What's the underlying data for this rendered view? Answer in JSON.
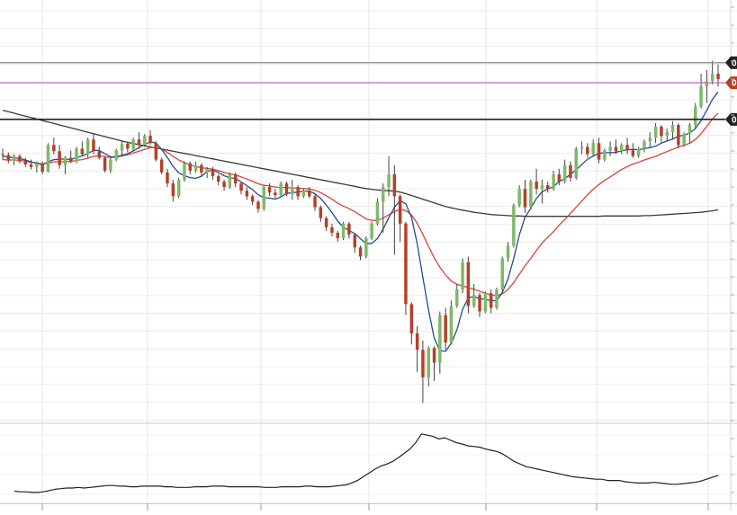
{
  "chart_data": [
    {
      "type": "candlestick",
      "panel": "price",
      "title": "",
      "xlabel": "",
      "ylabel": "",
      "ylim": [
        0,
        100
      ],
      "grid": true,
      "legend": "none",
      "colors": {
        "up": "#7fb86a",
        "down": "#b5402a",
        "wick": "#444444",
        "ma_fast": "#1f4e8c",
        "ma_mid": "#d9433a",
        "ma_long": "#3a3a3a",
        "line_purple": "#cc66cc",
        "line_gray": "#888888",
        "line_black": "#222222"
      },
      "horizontal_lines": [
        {
          "name": "level-top",
          "value": 89,
          "color": "#888888",
          "marker_text": "0",
          "marker_color": "#222222"
        },
        {
          "name": "level-purple",
          "value": 83.5,
          "color": "#cc66cc",
          "marker_text": "0",
          "marker_color": "#b5402a"
        },
        {
          "name": "level-black",
          "value": 73.5,
          "color": "#222222",
          "marker_text": "0",
          "marker_color": "#222222"
        }
      ],
      "candles": [
        [
          64.0,
          65.5,
          62.5,
          63.8
        ],
        [
          63.8,
          64.5,
          61.5,
          62.2
        ],
        [
          62.2,
          64.0,
          61.0,
          63.5
        ],
        [
          63.5,
          64.0,
          61.5,
          62.0
        ],
        [
          62.0,
          63.0,
          60.5,
          61.2
        ],
        [
          61.2,
          62.5,
          59.8,
          60.5
        ],
        [
          60.5,
          62.0,
          59.0,
          61.5
        ],
        [
          61.5,
          62.0,
          58.5,
          59.2
        ],
        [
          59.2,
          67.0,
          59.0,
          66.5
        ],
        [
          66.5,
          68.5,
          64.0,
          64.8
        ],
        [
          64.8,
          66.5,
          60.0,
          61.0
        ],
        [
          61.0,
          63.5,
          58.5,
          63.0
        ],
        [
          63.0,
          65.0,
          61.5,
          62.0
        ],
        [
          62.0,
          66.0,
          61.5,
          65.5
        ],
        [
          65.5,
          67.5,
          63.5,
          64.0
        ],
        [
          64.0,
          68.5,
          63.0,
          68.0
        ],
        [
          68.0,
          69.5,
          64.0,
          64.8
        ],
        [
          64.8,
          66.0,
          62.5,
          63.0
        ],
        [
          63.0,
          63.5,
          59.0,
          59.5
        ],
        [
          59.5,
          63.0,
          58.8,
          62.5
        ],
        [
          62.5,
          65.5,
          62.0,
          65.0
        ],
        [
          65.0,
          67.5,
          63.5,
          66.8
        ],
        [
          66.8,
          67.5,
          64.5,
          65.5
        ],
        [
          65.5,
          68.5,
          64.8,
          68.0
        ],
        [
          68.0,
          70.0,
          65.5,
          66.5
        ],
        [
          66.5,
          69.5,
          66.0,
          69.0
        ],
        [
          69.0,
          70.5,
          66.5,
          67.0
        ],
        [
          67.0,
          67.5,
          62.0,
          62.5
        ],
        [
          62.5,
          63.0,
          58.5,
          59.0
        ],
        [
          59.0,
          60.0,
          55.0,
          56.0
        ],
        [
          56.0,
          57.0,
          51.0,
          52.5
        ],
        [
          52.5,
          57.5,
          52.0,
          57.0
        ],
        [
          57.0,
          62.0,
          56.5,
          61.5
        ],
        [
          61.5,
          62.0,
          58.5,
          59.5
        ],
        [
          59.5,
          62.0,
          59.0,
          61.0
        ],
        [
          61.0,
          61.5,
          58.0,
          59.0
        ],
        [
          59.0,
          60.5,
          57.5,
          60.0
        ],
        [
          60.0,
          60.5,
          57.0,
          58.0
        ],
        [
          58.0,
          58.5,
          55.5,
          56.5
        ],
        [
          56.5,
          57.0,
          54.0,
          55.0
        ],
        [
          55.0,
          59.0,
          54.5,
          58.5
        ],
        [
          58.5,
          59.0,
          55.0,
          56.0
        ],
        [
          56.0,
          56.5,
          53.0,
          54.0
        ],
        [
          54.0,
          55.0,
          51.5,
          52.5
        ],
        [
          52.5,
          53.0,
          50.0,
          51.0
        ],
        [
          51.0,
          51.5,
          48.0,
          49.0
        ],
        [
          49.0,
          55.5,
          48.5,
          55.0
        ],
        [
          55.0,
          56.0,
          52.5,
          53.5
        ],
        [
          53.5,
          54.5,
          52.0,
          52.8
        ],
        [
          52.8,
          56.5,
          52.5,
          56.0
        ],
        [
          56.0,
          56.5,
          52.5,
          53.0
        ],
        [
          53.0,
          57.0,
          51.5,
          55.0
        ],
        [
          55.0,
          55.5,
          51.5,
          52.5
        ],
        [
          52.5,
          54.5,
          52.0,
          54.0
        ],
        [
          54.0,
          55.0,
          52.0,
          52.5
        ],
        [
          52.5,
          53.0,
          48.5,
          49.5
        ],
        [
          49.5,
          50.0,
          45.5,
          46.5
        ],
        [
          46.5,
          47.0,
          43.0,
          44.0
        ],
        [
          44.0,
          45.0,
          41.5,
          42.5
        ],
        [
          42.5,
          43.0,
          40.0,
          41.0
        ],
        [
          41.0,
          45.5,
          40.5,
          45.0
        ],
        [
          45.0,
          45.5,
          41.0,
          42.0
        ],
        [
          42.0,
          42.5,
          37.0,
          38.5
        ],
        [
          38.5,
          39.0,
          35.0,
          36.0
        ],
        [
          36.0,
          41.5,
          35.5,
          41.0
        ],
        [
          41.0,
          45.5,
          40.5,
          45.0
        ],
        [
          45.0,
          52.0,
          44.5,
          51.0
        ],
        [
          51.0,
          56.0,
          42.5,
          55.0
        ],
        [
          55.0,
          63.5,
          52.5,
          58.5
        ],
        [
          58.5,
          61.0,
          36.5,
          52.5
        ],
        [
          52.5,
          53.0,
          40.0,
          45.0
        ],
        [
          45.0,
          45.5,
          20.0,
          23.0
        ],
        [
          23.0,
          23.5,
          12.0,
          15.0
        ],
        [
          15.0,
          17.0,
          4.5,
          10.5
        ],
        [
          10.5,
          13.0,
          -4.0,
          3.0
        ],
        [
          3.0,
          11.5,
          0.5,
          11.0
        ],
        [
          11.0,
          11.5,
          2.0,
          7.0
        ],
        [
          7.0,
          21.0,
          4.0,
          20.0
        ],
        [
          20.0,
          22.0,
          10.5,
          12.5
        ],
        [
          12.5,
          24.0,
          12.0,
          22.5
        ],
        [
          22.5,
          28.5,
          22.0,
          27.0
        ],
        [
          27.0,
          35.5,
          26.0,
          34.5
        ],
        [
          34.5,
          36.0,
          20.5,
          22.5
        ],
        [
          22.5,
          28.5,
          22.0,
          25.5
        ],
        [
          25.5,
          26.0,
          19.5,
          21.0
        ],
        [
          21.0,
          26.5,
          20.5,
          26.0
        ],
        [
          26.0,
          27.0,
          20.5,
          22.0
        ],
        [
          22.0,
          27.5,
          21.5,
          27.0
        ],
        [
          27.0,
          36.0,
          26.5,
          35.5
        ],
        [
          35.5,
          40.0,
          34.5,
          39.0
        ],
        [
          39.0,
          50.5,
          38.5,
          50.0
        ],
        [
          50.0,
          55.5,
          49.5,
          54.5
        ],
        [
          54.5,
          57.0,
          48.0,
          49.5
        ],
        [
          49.5,
          57.0,
          49.0,
          56.5
        ],
        [
          56.5,
          60.0,
          53.0,
          54.5
        ],
        [
          54.5,
          57.0,
          50.5,
          55.5
        ],
        [
          55.5,
          56.5,
          53.5,
          54.5
        ],
        [
          54.5,
          59.5,
          54.0,
          58.5
        ],
        [
          58.5,
          60.0,
          55.5,
          56.5
        ],
        [
          56.5,
          62.5,
          56.0,
          61.0
        ],
        [
          61.0,
          62.0,
          56.5,
          57.5
        ],
        [
          57.5,
          66.0,
          57.0,
          65.5
        ],
        [
          65.5,
          67.5,
          64.0,
          66.0
        ],
        [
          66.0,
          67.0,
          63.0,
          64.0
        ],
        [
          64.0,
          68.0,
          63.5,
          67.0
        ],
        [
          67.0,
          68.5,
          61.5,
          62.5
        ],
        [
          62.5,
          65.5,
          62.0,
          65.0
        ],
        [
          65.0,
          67.5,
          63.5,
          66.0
        ],
        [
          66.0,
          68.0,
          64.0,
          64.8
        ],
        [
          64.8,
          67.0,
          64.0,
          66.5
        ],
        [
          66.5,
          68.5,
          64.0,
          65.0
        ],
        [
          65.0,
          67.0,
          63.0,
          63.5
        ],
        [
          63.5,
          66.0,
          63.0,
          65.5
        ],
        [
          65.5,
          68.0,
          64.5,
          67.5
        ],
        [
          67.5,
          70.0,
          66.0,
          68.5
        ],
        [
          68.5,
          72.5,
          67.0,
          71.5
        ],
        [
          71.5,
          72.0,
          67.0,
          69.0
        ],
        [
          69.0,
          71.0,
          67.5,
          70.0
        ],
        [
          70.0,
          73.0,
          68.0,
          72.0
        ],
        [
          72.0,
          72.5,
          65.5,
          66.5
        ],
        [
          66.5,
          70.0,
          66.0,
          69.5
        ],
        [
          69.5,
          72.5,
          67.0,
          72.0
        ],
        [
          72.0,
          78.0,
          71.0,
          77.0
        ],
        [
          77.0,
          86.0,
          76.5,
          82.5
        ],
        [
          82.5,
          87.0,
          78.0,
          84.0
        ],
        [
          84.0,
          89.5,
          83.0,
          86.0
        ],
        [
          86.0,
          88.5,
          82.5,
          84.5
        ]
      ],
      "ma_fast": [
        63.5,
        63.2,
        63.0,
        62.8,
        62.4,
        61.9,
        61.5,
        61.1,
        61.9,
        62.5,
        62.6,
        62.7,
        62.5,
        63.1,
        63.5,
        64.2,
        65.0,
        65.0,
        64.1,
        63.3,
        63.3,
        63.7,
        64.1,
        64.9,
        65.8,
        66.6,
        67.4,
        67.0,
        65.3,
        63.1,
        60.7,
        58.9,
        58.1,
        57.6,
        57.4,
        57.9,
        59.3,
        59.6,
        59.0,
        58.1,
        57.5,
        57.4,
        56.4,
        55.4,
        54.3,
        52.9,
        52.1,
        52.0,
        51.7,
        52.3,
        53.3,
        53.5,
        53.6,
        53.9,
        53.9,
        53.2,
        51.9,
        50.1,
        48.0,
        45.7,
        44.0,
        43.1,
        42.3,
        40.9,
        39.5,
        39.6,
        40.9,
        43.5,
        46.6,
        49.5,
        51.3,
        50.4,
        46.7,
        39.6,
        30.3,
        21.4,
        13.7,
        10.3,
        10.1,
        12.3,
        16.0,
        21.6,
        24.7,
        25.1,
        24.5,
        24.3,
        24.0,
        23.9,
        26.2,
        29.9,
        35.5,
        42.0,
        46.8,
        49.2,
        51.9,
        53.7,
        54.5,
        55.1,
        56.5,
        57.3,
        58.5,
        59.7,
        61.2,
        62.6,
        63.5,
        64.2,
        64.4,
        64.4,
        64.5,
        64.9,
        65.2,
        65.3,
        65.2,
        65.5,
        65.8,
        66.2,
        67.0,
        67.6,
        68.1,
        68.9,
        69.2,
        69.8,
        71.0,
        73.2,
        76.0,
        79.0,
        81.0
      ],
      "ma_mid": [
        62.5,
        62.4,
        62.4,
        62.3,
        62.1,
        61.8,
        61.6,
        61.3,
        61.6,
        61.9,
        61.9,
        62.0,
        62.0,
        62.3,
        62.5,
        62.9,
        63.4,
        63.6,
        63.3,
        63.1,
        63.2,
        63.5,
        63.8,
        64.3,
        64.8,
        65.3,
        65.8,
        65.9,
        65.4,
        64.5,
        63.4,
        62.4,
        61.7,
        61.1,
        60.6,
        60.3,
        60.1,
        59.9,
        59.5,
        59.0,
        58.6,
        58.3,
        57.8,
        57.2,
        56.6,
        55.9,
        55.5,
        55.3,
        55.0,
        54.9,
        54.9,
        54.8,
        54.7,
        54.6,
        54.5,
        54.1,
        53.5,
        52.6,
        51.7,
        50.6,
        49.8,
        49.1,
        48.3,
        47.3,
        46.3,
        45.9,
        45.9,
        46.5,
        47.4,
        48.3,
        48.9,
        48.6,
        47.4,
        45.1,
        42.1,
        38.8,
        35.7,
        33.1,
        31.0,
        29.3,
        28.4,
        28.0,
        27.5,
        27.1,
        26.5,
        26.0,
        25.5,
        25.3,
        25.8,
        27.0,
        28.9,
        31.2,
        33.5,
        35.5,
        37.7,
        39.7,
        41.3,
        42.8,
        44.6,
        46.1,
        47.8,
        49.5,
        51.2,
        52.9,
        54.4,
        55.7,
        56.8,
        57.8,
        58.8,
        59.8,
        60.6,
        61.3,
        61.8,
        62.4,
        62.9,
        63.4,
        64.1,
        64.7,
        65.3,
        66.0,
        66.4,
        67.0,
        68.0,
        69.6,
        71.6,
        73.6,
        75.2
      ],
      "ma_long": [
        76.0,
        75.6,
        75.2,
        74.8,
        74.4,
        74.0,
        73.6,
        73.2,
        72.8,
        72.4,
        72.0,
        71.6,
        71.2,
        70.8,
        70.4,
        70.0,
        69.6,
        69.2,
        68.8,
        68.4,
        68.0,
        67.6,
        67.2,
        66.9,
        66.6,
        66.3,
        66.0,
        65.7,
        65.4,
        65.1,
        64.8,
        64.5,
        64.2,
        63.9,
        63.6,
        63.3,
        63.0,
        62.7,
        62.4,
        62.1,
        61.8,
        61.5,
        61.2,
        60.9,
        60.6,
        60.3,
        60.0,
        59.7,
        59.4,
        59.1,
        58.8,
        58.5,
        58.2,
        57.9,
        57.6,
        57.3,
        57.0,
        56.7,
        56.4,
        56.1,
        55.8,
        55.5,
        55.2,
        54.9,
        54.6,
        54.4,
        54.2,
        54.1,
        54.0,
        53.9,
        53.6,
        53.2,
        52.7,
        52.2,
        51.7,
        51.2,
        50.7,
        50.2,
        49.7,
        49.3,
        49.0,
        48.7,
        48.4,
        48.1,
        47.9,
        47.7,
        47.5,
        47.4,
        47.3,
        47.2,
        47.1,
        47.1,
        47.0,
        47.0,
        47.0,
        47.0,
        47.0,
        47.0,
        47.0,
        47.0,
        47.0,
        47.0,
        47.0,
        47.0,
        47.0,
        47.0,
        47.1,
        47.1,
        47.1,
        47.1,
        47.1,
        47.1,
        47.1,
        47.2,
        47.2,
        47.3,
        47.4,
        47.5,
        47.6,
        47.7,
        47.8,
        47.9,
        48.0,
        48.1,
        48.3,
        48.5,
        48.8
      ]
    },
    {
      "type": "line",
      "panel": "indicator",
      "title": "",
      "xlabel": "",
      "ylabel": "",
      "ylim": [
        0,
        100
      ],
      "grid": true,
      "legend": "none",
      "series": [
        {
          "values": [
            5,
            4,
            4,
            3,
            3,
            4,
            6,
            8,
            9,
            10,
            10,
            11,
            10,
            11,
            12,
            13,
            14,
            14,
            13,
            13,
            12,
            12,
            13,
            13,
            13,
            13,
            12,
            12,
            11,
            11,
            11,
            12,
            12,
            12,
            13,
            13,
            13,
            12,
            12,
            12,
            12,
            12,
            12,
            11,
            11,
            11,
            12,
            12,
            12,
            12,
            13,
            13,
            12,
            12,
            12,
            13,
            14,
            15,
            18,
            22,
            28,
            34,
            40,
            45,
            48,
            52,
            58,
            65,
            72,
            82,
            96,
            94,
            92,
            88,
            90,
            86,
            82,
            80,
            77,
            76,
            75,
            72,
            70,
            68,
            64,
            58,
            52,
            48,
            44,
            42,
            40,
            38,
            36,
            34,
            32,
            30,
            28,
            27,
            26,
            25,
            24,
            24,
            22,
            22,
            22,
            20,
            19,
            18,
            18,
            18,
            19,
            18,
            17,
            16,
            16,
            17,
            18,
            19,
            21,
            24,
            27,
            30
          ],
          "color": "#222222"
        }
      ]
    }
  ]
}
